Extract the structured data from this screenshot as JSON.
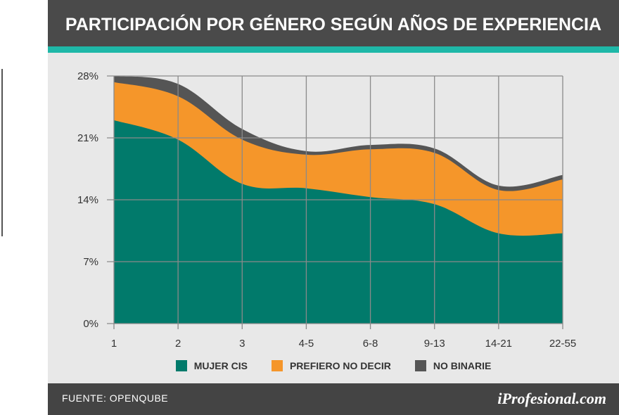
{
  "header": {
    "title": "PARTICIPACIÓN POR GÉNERO SEGÚN AÑOS DE EXPERIENCIA"
  },
  "footer": {
    "source": "FUENTE: OPENQUBE",
    "brand": "iProfesional.com"
  },
  "colors": {
    "mujer_cis": "#017a6b",
    "prefiero_no_decir": "#f5962a",
    "no_binarie": "#555555",
    "header": "#4a4a4a",
    "accent": "#1fb8a8"
  },
  "chart_data": {
    "type": "area",
    "stacked": true,
    "categories": [
      "1",
      "2",
      "3",
      "4-5",
      "6-8",
      "9-13",
      "14-21",
      "22-55"
    ],
    "yticks": [
      "0%",
      "7%",
      "14%",
      "21%",
      "28%"
    ],
    "ylim": [
      0,
      28
    ],
    "grid": true,
    "legend_position": "bottom",
    "series": [
      {
        "name": "MUJER CIS",
        "values": [
          23.0,
          20.8,
          15.8,
          15.3,
          14.3,
          13.5,
          10.2,
          10.2
        ]
      },
      {
        "name": "PREFIERO NO DECIR",
        "values": [
          4.3,
          4.9,
          5.0,
          3.8,
          5.4,
          5.8,
          4.9,
          6.1
        ]
      },
      {
        "name": "NO BINARIE",
        "values": [
          0.7,
          1.4,
          1.2,
          0.4,
          0.5,
          0.5,
          0.5,
          0.5
        ]
      }
    ]
  }
}
